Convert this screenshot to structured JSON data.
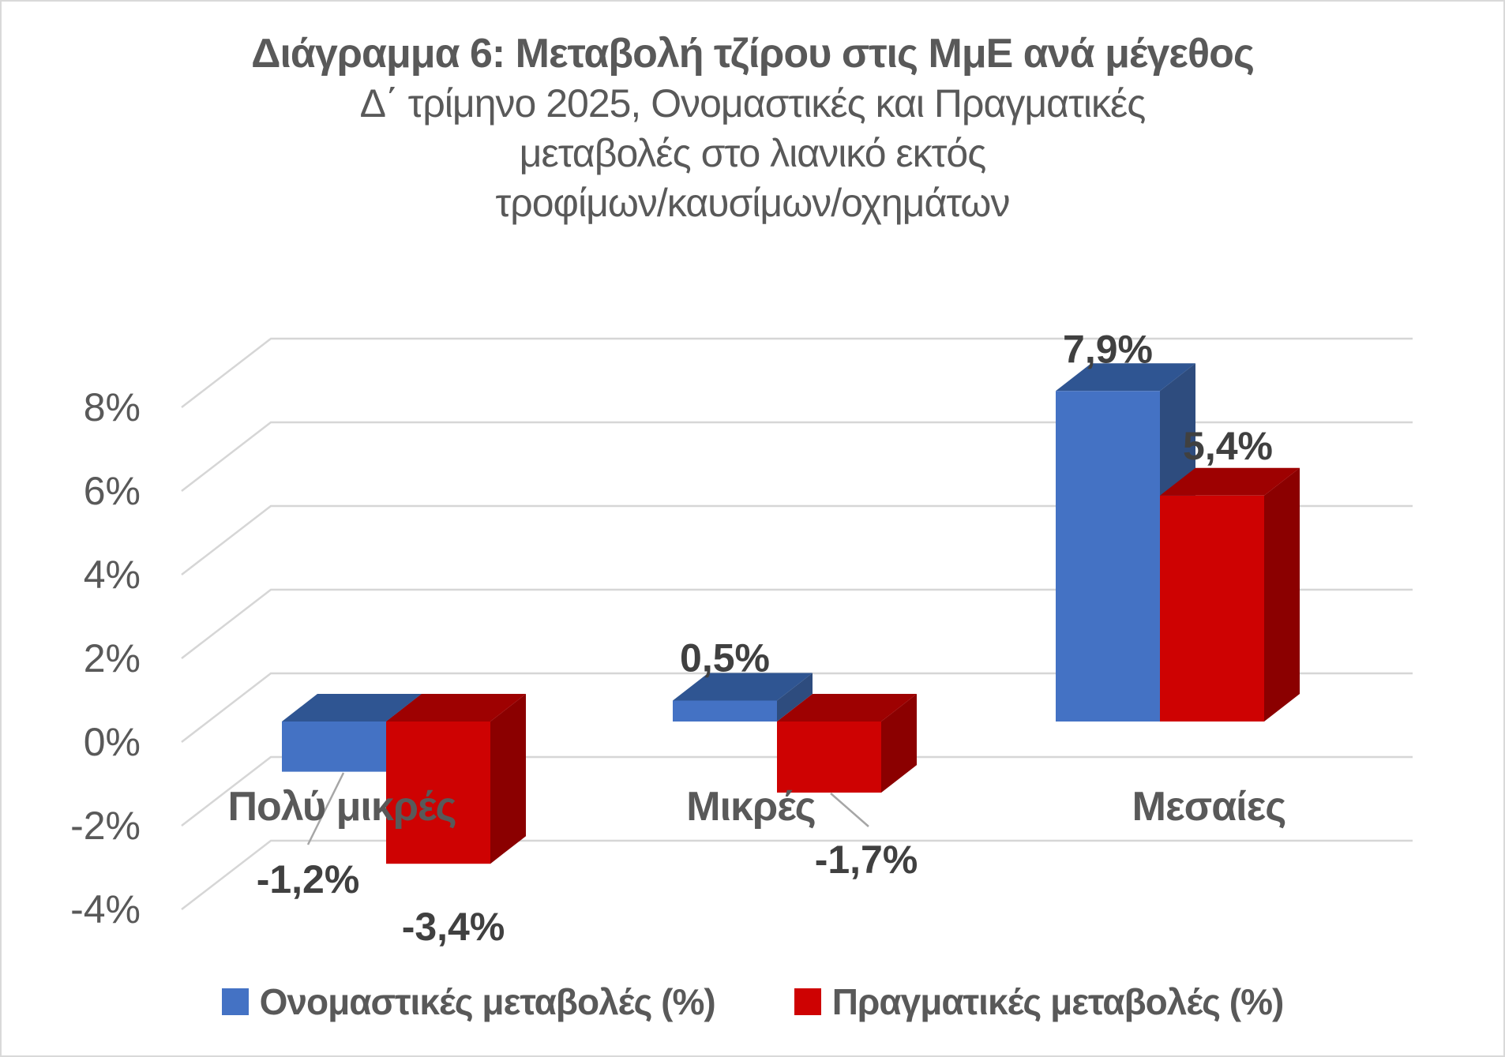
{
  "window": {
    "background": "#FFFFFF",
    "border_color": "#D9D9D9"
  },
  "chart_data": {
    "type": "bar",
    "variant": "3d-clustered-column",
    "title": "Διάγραμμα 6: Μεταβολή τζίρου στις ΜμΕ ανά μέγεθος",
    "subtitle_lines": [
      "Δ΄ τρίμηνο 2025, Ονομαστικές και Πραγματικές",
      "μεταβολές στο λιανικό εκτός",
      "τροφίμων/καυσίμων/οχημάτων"
    ],
    "categories": [
      "Πολύ μικρές",
      "Μικρές",
      "Μεσαίες"
    ],
    "series": [
      {
        "name": "Ονομαστικές μεταβολές (%)",
        "values": [
          -1.2,
          0.5,
          7.9
        ],
        "data_labels": [
          "-1,2%",
          "0,5%",
          "7,9%"
        ],
        "color_front": "#4472C4",
        "color_top": "#2F5592",
        "color_side": "#2E4C7E"
      },
      {
        "name": "Πραγματικές μεταβολές (%)",
        "values": [
          -3.4,
          -1.7,
          5.4
        ],
        "data_labels": [
          "-3,4%",
          "-1,7%",
          "5,4%"
        ],
        "color_front": "#CE0202",
        "color_top": "#9E0101",
        "color_side": "#8B0000"
      }
    ],
    "y_axis": {
      "tick_labels": [
        "8%",
        "6%",
        "4%",
        "2%",
        "0%",
        "-2%",
        "-4%"
      ],
      "tick_values": [
        8,
        6,
        4,
        2,
        0,
        -2,
        -4
      ],
      "min": -4,
      "max": 8,
      "step": 2
    },
    "gridlines": true,
    "legend_position": "bottom",
    "axis_text_color": "#595959",
    "category_text_color": "#595959",
    "data_label_color": "#404040",
    "gridline_color": "#D6D6D6",
    "leader_line_color": "#A6A6A6"
  }
}
